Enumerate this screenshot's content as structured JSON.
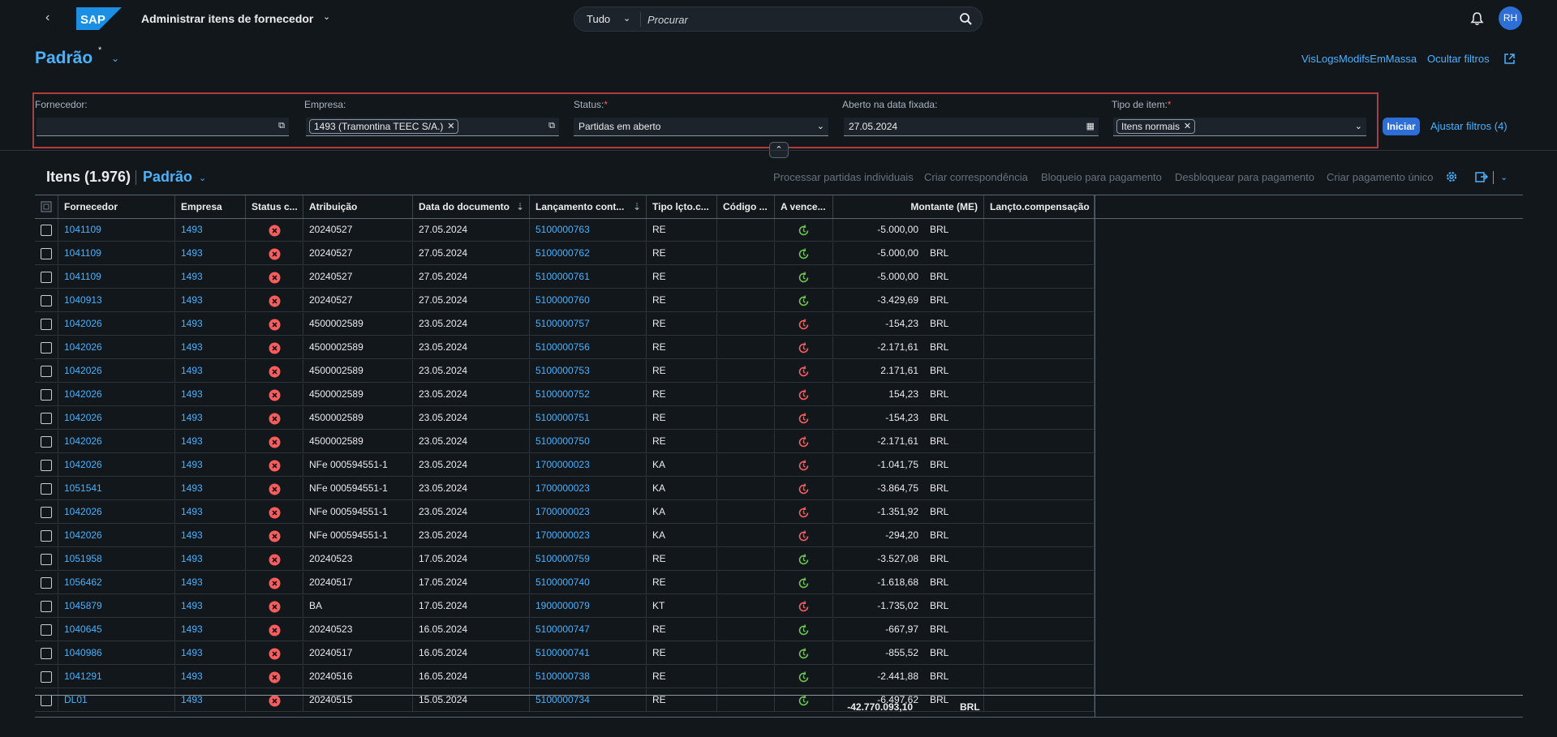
{
  "shell": {
    "back_icon": "back-arrow-icon",
    "logo": "SAP",
    "app_title": "Administrar itens de fornecedor",
    "search_scope": "Tudo",
    "search_placeholder": "Procurar",
    "avatar_initials": "RH"
  },
  "header": {
    "variant": "Padrão",
    "variant_modified": "*",
    "links": [
      "VisLogsModifsEmMassa",
      "Ocultar filtros"
    ]
  },
  "filters": {
    "fornecedor": {
      "label": "Fornecedor:",
      "value": ""
    },
    "empresa": {
      "label": "Empresa:",
      "token": "1493 (Tramontina TEEC S/A.)"
    },
    "status": {
      "label": "Status:",
      "value": "Partidas em aberto"
    },
    "aberto": {
      "label": "Aberto na data fixada:",
      "value": "27.05.2024"
    },
    "tipo": {
      "label": "Tipo de item:",
      "token": "Itens normais"
    },
    "required_marker": "*",
    "go_label": "Iniciar",
    "adjust_label": "Ajustar filtros (4)"
  },
  "table": {
    "title": "Itens (1.976)",
    "variant": "Padrão",
    "toolbar": [
      "Processar partidas individuais",
      "Criar correspondência",
      "Bloqueio para pagamento",
      "Desbloquear para pagamento",
      "Criar pagamento único"
    ],
    "columns": [
      "Fornecedor",
      "Empresa",
      "Status c...",
      "Atribuição",
      "Data do documento",
      "Lançamento cont...",
      "Tipo lçto.c...",
      "Código ...",
      "A vence...",
      "Montante (ME)",
      "Lançto.compensação"
    ],
    "rows": [
      {
        "fornecedor": "1041109",
        "empresa": "1493",
        "atribuicao": "20240527",
        "data": "27.05.2024",
        "lanc": "5100000763",
        "tipo": "RE",
        "due": "ok",
        "montante": "-5.000,00",
        "moeda": "BRL"
      },
      {
        "fornecedor": "1041109",
        "empresa": "1493",
        "atribuicao": "20240527",
        "data": "27.05.2024",
        "lanc": "5100000762",
        "tipo": "RE",
        "due": "ok",
        "montante": "-5.000,00",
        "moeda": "BRL"
      },
      {
        "fornecedor": "1041109",
        "empresa": "1493",
        "atribuicao": "20240527",
        "data": "27.05.2024",
        "lanc": "5100000761",
        "tipo": "RE",
        "due": "ok",
        "montante": "-5.000,00",
        "moeda": "BRL"
      },
      {
        "fornecedor": "1040913",
        "empresa": "1493",
        "atribuicao": "20240527",
        "data": "27.05.2024",
        "lanc": "5100000760",
        "tipo": "RE",
        "due": "ok",
        "montante": "-3.429,69",
        "moeda": "BRL"
      },
      {
        "fornecedor": "1042026",
        "empresa": "1493",
        "atribuicao": "4500002589",
        "data": "23.05.2024",
        "lanc": "5100000757",
        "tipo": "RE",
        "due": "overdue",
        "montante": "-154,23",
        "moeda": "BRL"
      },
      {
        "fornecedor": "1042026",
        "empresa": "1493",
        "atribuicao": "4500002589",
        "data": "23.05.2024",
        "lanc": "5100000756",
        "tipo": "RE",
        "due": "overdue",
        "montante": "-2.171,61",
        "moeda": "BRL"
      },
      {
        "fornecedor": "1042026",
        "empresa": "1493",
        "atribuicao": "4500002589",
        "data": "23.05.2024",
        "lanc": "5100000753",
        "tipo": "RE",
        "due": "overdue",
        "montante": "2.171,61",
        "moeda": "BRL"
      },
      {
        "fornecedor": "1042026",
        "empresa": "1493",
        "atribuicao": "4500002589",
        "data": "23.05.2024",
        "lanc": "5100000752",
        "tipo": "RE",
        "due": "overdue",
        "montante": "154,23",
        "moeda": "BRL"
      },
      {
        "fornecedor": "1042026",
        "empresa": "1493",
        "atribuicao": "4500002589",
        "data": "23.05.2024",
        "lanc": "5100000751",
        "tipo": "RE",
        "due": "overdue",
        "montante": "-154,23",
        "moeda": "BRL"
      },
      {
        "fornecedor": "1042026",
        "empresa": "1493",
        "atribuicao": "4500002589",
        "data": "23.05.2024",
        "lanc": "5100000750",
        "tipo": "RE",
        "due": "overdue",
        "montante": "-2.171,61",
        "moeda": "BRL"
      },
      {
        "fornecedor": "1042026",
        "empresa": "1493",
        "atribuicao": "NFe 000594551-1",
        "data": "23.05.2024",
        "lanc": "1700000023",
        "tipo": "KA",
        "due": "overdue",
        "montante": "-1.041,75",
        "moeda": "BRL"
      },
      {
        "fornecedor": "1051541",
        "empresa": "1493",
        "atribuicao": "NFe 000594551-1",
        "data": "23.05.2024",
        "lanc": "1700000023",
        "tipo": "KA",
        "due": "overdue",
        "montante": "-3.864,75",
        "moeda": "BRL"
      },
      {
        "fornecedor": "1042026",
        "empresa": "1493",
        "atribuicao": "NFe 000594551-1",
        "data": "23.05.2024",
        "lanc": "1700000023",
        "tipo": "KA",
        "due": "overdue",
        "montante": "-1.351,92",
        "moeda": "BRL"
      },
      {
        "fornecedor": "1042026",
        "empresa": "1493",
        "atribuicao": "NFe 000594551-1",
        "data": "23.05.2024",
        "lanc": "1700000023",
        "tipo": "KA",
        "due": "overdue",
        "montante": "-294,20",
        "moeda": "BRL"
      },
      {
        "fornecedor": "1051958",
        "empresa": "1493",
        "atribuicao": "20240523",
        "data": "17.05.2024",
        "lanc": "5100000759",
        "tipo": "RE",
        "due": "ok",
        "montante": "-3.527,08",
        "moeda": "BRL"
      },
      {
        "fornecedor": "1056462",
        "empresa": "1493",
        "atribuicao": "20240517",
        "data": "17.05.2024",
        "lanc": "5100000740",
        "tipo": "RE",
        "due": "ok",
        "montante": "-1.618,68",
        "moeda": "BRL"
      },
      {
        "fornecedor": "1045879",
        "empresa": "1493",
        "atribuicao": "BA",
        "data": "17.05.2024",
        "lanc": "1900000079",
        "tipo": "KT",
        "due": "overdue",
        "montante": "-1.735,02",
        "moeda": "BRL"
      },
      {
        "fornecedor": "1040645",
        "empresa": "1493",
        "atribuicao": "20240523",
        "data": "16.05.2024",
        "lanc": "5100000747",
        "tipo": "RE",
        "due": "ok",
        "montante": "-667,97",
        "moeda": "BRL"
      },
      {
        "fornecedor": "1040986",
        "empresa": "1493",
        "atribuicao": "20240517",
        "data": "16.05.2024",
        "lanc": "5100000741",
        "tipo": "RE",
        "due": "ok",
        "montante": "-855,52",
        "moeda": "BRL"
      },
      {
        "fornecedor": "1041291",
        "empresa": "1493",
        "atribuicao": "20240516",
        "data": "16.05.2024",
        "lanc": "5100000738",
        "tipo": "RE",
        "due": "ok",
        "montante": "-2.441,88",
        "moeda": "BRL"
      },
      {
        "fornecedor": "DL01",
        "empresa": "1493",
        "atribuicao": "20240515",
        "data": "15.05.2024",
        "lanc": "5100000734",
        "tipo": "RE",
        "due": "ok",
        "montante": "-6.497,62",
        "moeda": "BRL"
      }
    ],
    "total_amount": "-42.770.093,10",
    "total_currency": "BRL"
  },
  "colors": {
    "accent": "#4db1ff",
    "status_error": "#ff5d5d",
    "due_ok": "#6ac749",
    "due_overdue": "#ff5d5d",
    "filter_highlight": "#b8393a"
  }
}
